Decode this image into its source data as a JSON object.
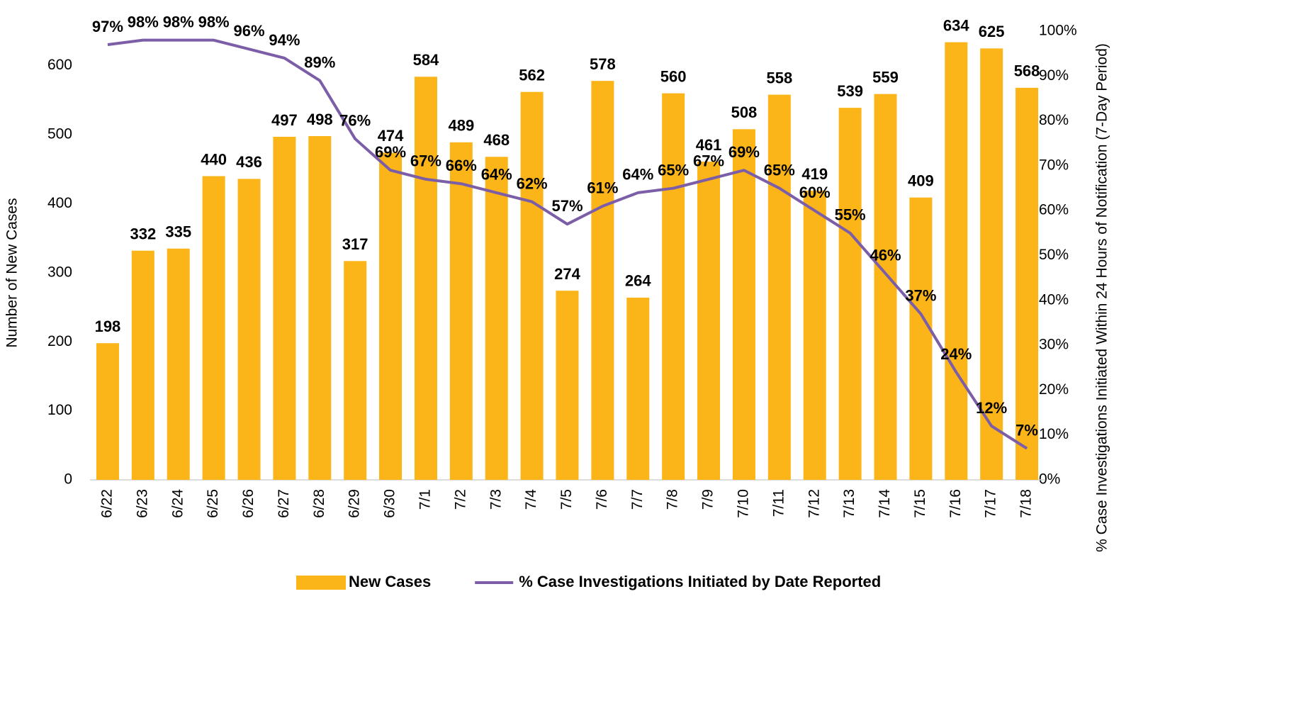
{
  "chart_data": {
    "type": "bar_line",
    "y_axis_label": "Number of New Cases",
    "y2_axis_label": "% Case Investigations Initiated Within 24 Hours of Notification (7-Day Period)",
    "categories": [
      "6/22",
      "6/23",
      "6/24",
      "6/25",
      "6/26",
      "6/27",
      "6/28",
      "6/29",
      "6/30",
      "7/1",
      "7/2",
      "7/3",
      "7/4",
      "7/5",
      "7/6",
      "7/7",
      "7/8",
      "7/9",
      "7/10",
      "7/11",
      "7/12",
      "7/13",
      "7/14",
      "7/15",
      "7/16",
      "7/17",
      "7/18"
    ],
    "series": [
      {
        "name": "New Cases",
        "type": "bar",
        "color": "#FBB519",
        "values": [
          198,
          332,
          335,
          440,
          436,
          497,
          498,
          317,
          474,
          584,
          489,
          468,
          562,
          274,
          578,
          264,
          560,
          461,
          508,
          558,
          419,
          539,
          559,
          409,
          634,
          625,
          568
        ]
      },
      {
        "name": "% Case Investigations Initiated by Date Reported",
        "type": "line",
        "axis": "y2",
        "color": "#7B5EA7",
        "values": [
          97,
          98,
          98,
          98,
          96,
          94,
          89,
          76,
          69,
          67,
          66,
          64,
          62,
          57,
          61,
          64,
          65,
          67,
          69,
          65,
          60,
          55,
          46,
          37,
          24,
          12,
          7
        ],
        "value_labels": [
          "97%",
          "98%",
          "98%",
          "98%",
          "96%",
          "94%",
          "89%",
          "76%",
          "69%",
          "67%",
          "66%",
          "64%",
          "62%",
          "57%",
          "61%",
          "64%",
          "65%",
          "67%",
          "69%",
          "65%",
          "60%",
          "55%",
          "46%",
          "37%",
          "24%",
          "12%",
          "7%"
        ]
      }
    ],
    "ylim": [
      0,
      650
    ],
    "yticks": [
      0,
      100,
      200,
      300,
      400,
      500,
      600
    ],
    "y2lim": [
      0,
      100
    ],
    "y2ticks": [
      {
        "value": 0,
        "label": "0%"
      },
      {
        "value": 10,
        "label": "10%"
      },
      {
        "value": 20,
        "label": "20%"
      },
      {
        "value": 30,
        "label": "30%"
      },
      {
        "value": 40,
        "label": "40%"
      },
      {
        "value": 50,
        "label": "50%"
      },
      {
        "value": 60,
        "label": "60%"
      },
      {
        "value": 70,
        "label": "70%"
      },
      {
        "value": 80,
        "label": "80%"
      },
      {
        "value": 90,
        "label": "90%"
      },
      {
        "value": 100,
        "label": "100%"
      }
    ],
    "legend": "bottom"
  }
}
